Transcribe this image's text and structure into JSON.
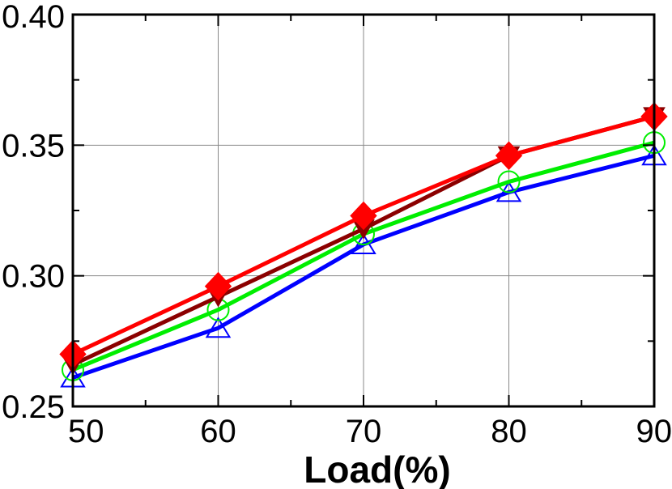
{
  "chart_data": {
    "type": "line",
    "title": "",
    "xlabel": "Load(%)",
    "ylabel": "",
    "x": [
      50,
      60,
      70,
      80,
      90
    ],
    "xlim": [
      50,
      90
    ],
    "ylim": [
      0.25,
      0.4
    ],
    "x_ticks": [
      50,
      60,
      70,
      80,
      90
    ],
    "x_tick_labels": [
      "50",
      "60",
      "70",
      "80",
      "90"
    ],
    "y_ticks": [
      0.25,
      0.3,
      0.35,
      0.4
    ],
    "y_tick_labels": [
      "0.25",
      "0.30",
      "0.35",
      "0.40"
    ],
    "grid": true,
    "series": [
      {
        "color": "#0000ff",
        "marker": "triangle-open",
        "values": [
          0.261,
          0.28,
          0.312,
          0.332,
          0.346
        ]
      },
      {
        "color": "#00ee00",
        "marker": "circle-open",
        "values": [
          0.264,
          0.287,
          0.316,
          0.336,
          0.351
        ]
      },
      {
        "color": "#8b0000",
        "marker": "triangle-down-filled",
        "values": [
          0.266,
          0.292,
          0.318,
          0.346,
          0.361
        ]
      },
      {
        "color": "#ff0000",
        "marker": "diamond-filled",
        "values": [
          0.27,
          0.296,
          0.323,
          0.346,
          0.361
        ]
      }
    ]
  }
}
